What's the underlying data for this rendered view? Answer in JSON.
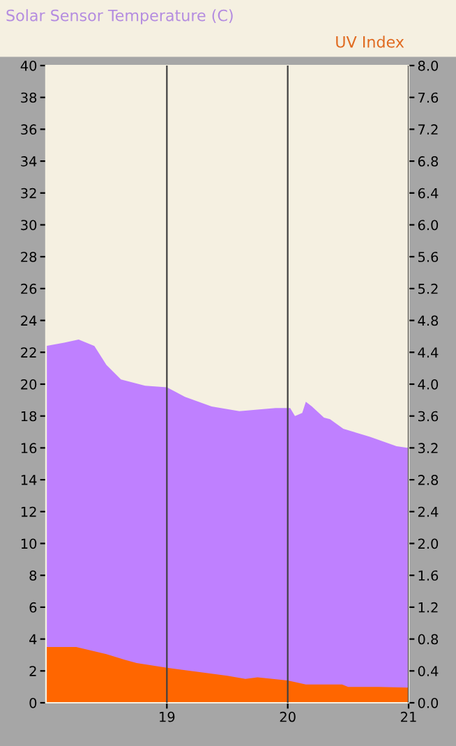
{
  "chart_data": {
    "type": "area",
    "title": "Solar Sensor Temperature (C)",
    "y2label": "UV Index",
    "xlim": [
      18,
      21
    ],
    "xticks": [
      19,
      20,
      21
    ],
    "ylim": [
      0,
      40
    ],
    "yticks": [
      0,
      2,
      4,
      6,
      8,
      10,
      12,
      14,
      16,
      18,
      20,
      22,
      24,
      26,
      28,
      30,
      32,
      34,
      36,
      38,
      40
    ],
    "y2lim": [
      0,
      8
    ],
    "y2ticks": [
      {
        "value": 0,
        "label": "0.0"
      },
      {
        "value": 0.4,
        "label": "0.4"
      },
      {
        "value": 0.8,
        "label": "0.8"
      },
      {
        "value": 1.2,
        "label": "1.2"
      },
      {
        "value": 1.6,
        "label": "1.6"
      },
      {
        "value": 2.0,
        "label": "2.0"
      },
      {
        "value": 2.4,
        "label": "2.4"
      },
      {
        "value": 2.8,
        "label": "2.8"
      },
      {
        "value": 3.2,
        "label": "3.2"
      },
      {
        "value": 3.6,
        "label": "3.6"
      },
      {
        "value": 4.0,
        "label": "4.0"
      },
      {
        "value": 4.4,
        "label": "4.4"
      },
      {
        "value": 4.8,
        "label": "4.8"
      },
      {
        "value": 5.2,
        "label": "5.2"
      },
      {
        "value": 5.6,
        "label": "5.6"
      },
      {
        "value": 6.0,
        "label": "6.0"
      },
      {
        "value": 6.4,
        "label": "6.4"
      },
      {
        "value": 6.8,
        "label": "6.8"
      },
      {
        "value": 7.2,
        "label": "7.2"
      },
      {
        "value": 7.6,
        "label": "7.6"
      },
      {
        "value": 8.0,
        "label": "8.0"
      }
    ],
    "grid": "x",
    "series": [
      {
        "color": "#bf80ff",
        "x": [
          18.0,
          18.15,
          18.27,
          18.4,
          18.5,
          18.62,
          18.82,
          19.0,
          19.15,
          19.37,
          19.6,
          19.9,
          20.02,
          20.06,
          20.12,
          20.15,
          20.2,
          20.3,
          20.35,
          20.46,
          20.68,
          20.9,
          21.0
        ],
        "values": [
          22.4,
          22.6,
          22.8,
          22.4,
          21.2,
          20.3,
          19.9,
          19.8,
          19.2,
          18.6,
          18.3,
          18.5,
          18.5,
          18.0,
          18.2,
          18.9,
          18.6,
          17.9,
          17.8,
          17.2,
          16.7,
          16.1,
          16.0
        ]
      },
      {
        "color": "#ff6600",
        "axis": "y2",
        "x": [
          18.0,
          18.25,
          18.5,
          18.65,
          18.75,
          19.0,
          19.25,
          19.5,
          19.65,
          19.75,
          20.0,
          20.15,
          20.45,
          20.5,
          20.75,
          21.0
        ],
        "values": [
          0.7,
          0.7,
          0.61,
          0.54,
          0.5,
          0.44,
          0.39,
          0.34,
          0.3,
          0.32,
          0.28,
          0.23,
          0.23,
          0.2,
          0.2,
          0.19
        ]
      }
    ]
  }
}
